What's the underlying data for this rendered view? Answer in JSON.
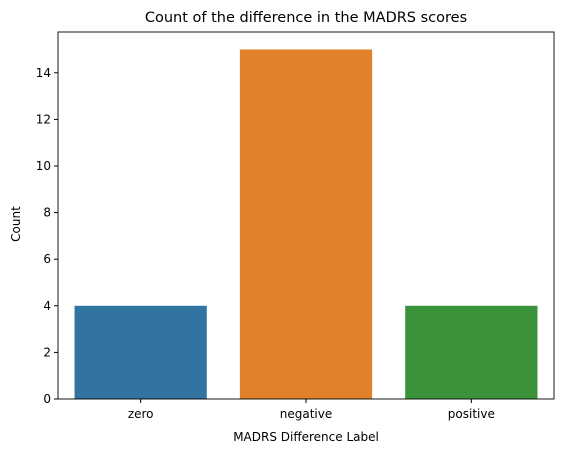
{
  "chart_data": {
    "type": "bar",
    "title": "Count of the difference in the MADRS scores",
    "xlabel": "MADRS Difference Label",
    "ylabel": "Count",
    "categories": [
      "zero",
      "negative",
      "positive"
    ],
    "values": [
      4,
      15,
      4
    ],
    "colors": [
      "#3274a1",
      "#e1812c",
      "#3a923a"
    ],
    "ylim": [
      0,
      15.75
    ],
    "yticks": [
      0,
      2,
      4,
      6,
      8,
      10,
      12,
      14
    ],
    "grid": false,
    "legend": "none"
  }
}
